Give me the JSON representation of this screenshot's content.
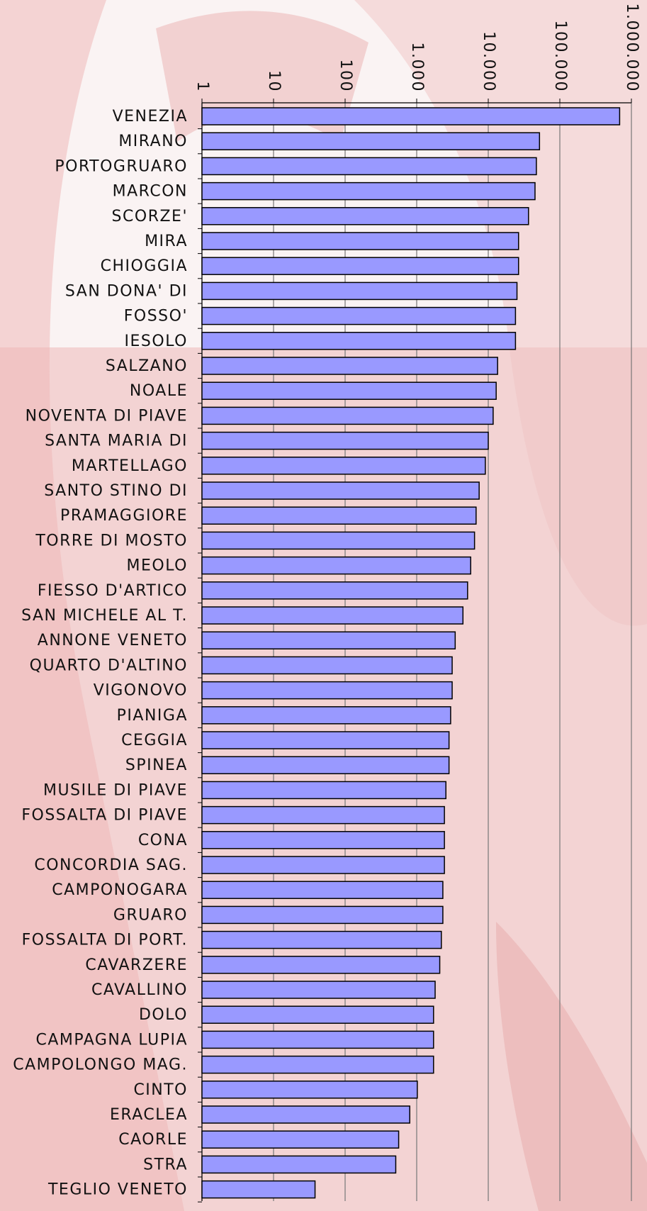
{
  "chart_data": {
    "type": "bar",
    "orientation": "horizontal",
    "log_x": true,
    "grid": true,
    "color": "#9999ff",
    "categories": [
      "VENEZIA",
      "MIRANO",
      "PORTOGRUARO",
      "MARCON",
      "SCORZE'",
      "MIRA",
      "CHIOGGIA",
      "SAN DONA' DI",
      "FOSSO'",
      "IESOLO",
      "SALZANO",
      "NOALE",
      "NOVENTA DI PIAVE",
      "SANTA MARIA DI",
      "MARTELLAGO",
      "SANTO STINO DI",
      "PRAMAGGIORE",
      "TORRE DI MOSTO",
      "MEOLO",
      "FIESSO D'ARTICO",
      "SAN MICHELE AL T.",
      "ANNONE VENETO",
      "QUARTO D'ALTINO",
      "VIGONOVO",
      "PIANIGA",
      "CEGGIA",
      "SPINEA",
      "MUSILE DI PIAVE",
      "FOSSALTA DI PIAVE",
      "CONA",
      "CONCORDIA SAG.",
      "CAMPONOGARA",
      "GRUARO",
      "FOSSALTA DI PORT.",
      "CAVARZERE",
      "CAVALLINO",
      "DOLO",
      "CAMPAGNA LUPIA",
      "CAMPOLONGO MAG.",
      "CINTO",
      "ERACLEA",
      "CAORLE",
      "STRA",
      "TEGLIO VENETO"
    ],
    "values": [
      685000,
      52000,
      47000,
      45000,
      36500,
      26500,
      26500,
      25200,
      24000,
      24000,
      13500,
      12900,
      11700,
      10000,
      9100,
      7460,
      6760,
      6430,
      5680,
      5140,
      4430,
      3450,
      3130,
      3130,
      2980,
      2830,
      2830,
      2560,
      2440,
      2440,
      2440,
      2320,
      2320,
      2210,
      2100,
      1810,
      1720,
      1720,
      1720,
      1020,
      800,
      560,
      510,
      38
    ],
    "xlim": [
      1,
      1000000
    ],
    "xticks": [
      1,
      10,
      100,
      {
        "value": 1000,
        "label": "1.000"
      },
      {
        "value": 10000,
        "label": "10.000"
      },
      {
        "value": 100000,
        "label": "100.000"
      },
      {
        "value": 1000000,
        "label": "1.000.000"
      }
    ]
  }
}
